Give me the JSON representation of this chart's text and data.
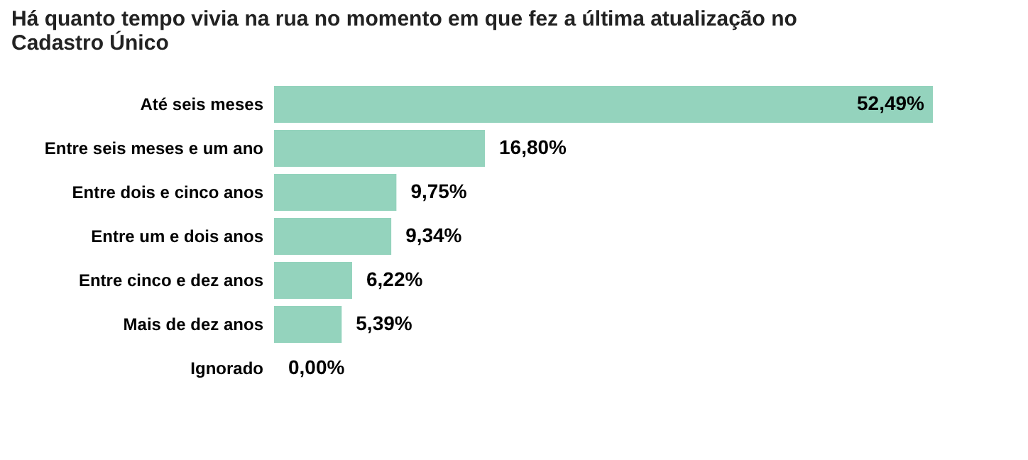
{
  "chart_data": {
    "type": "bar",
    "orientation": "horizontal",
    "title": "Há quanto tempo vivia na rua no momento em que fez a última atualização no Cadastro Único",
    "categories": [
      "Até seis meses",
      "Entre seis meses e um ano",
      "Entre dois e cinco anos",
      "Entre um e dois anos",
      "Entre cinco e dez anos",
      "Mais de dez anos",
      "Ignorado"
    ],
    "values": [
      52.49,
      16.8,
      9.75,
      9.34,
      6.22,
      5.39,
      0.0
    ],
    "value_labels": [
      "52,49%",
      "16,80%",
      "9,75%",
      "9,34%",
      "6,22%",
      "5,39%",
      "0,00%"
    ],
    "color": "#94d3bd"
  }
}
